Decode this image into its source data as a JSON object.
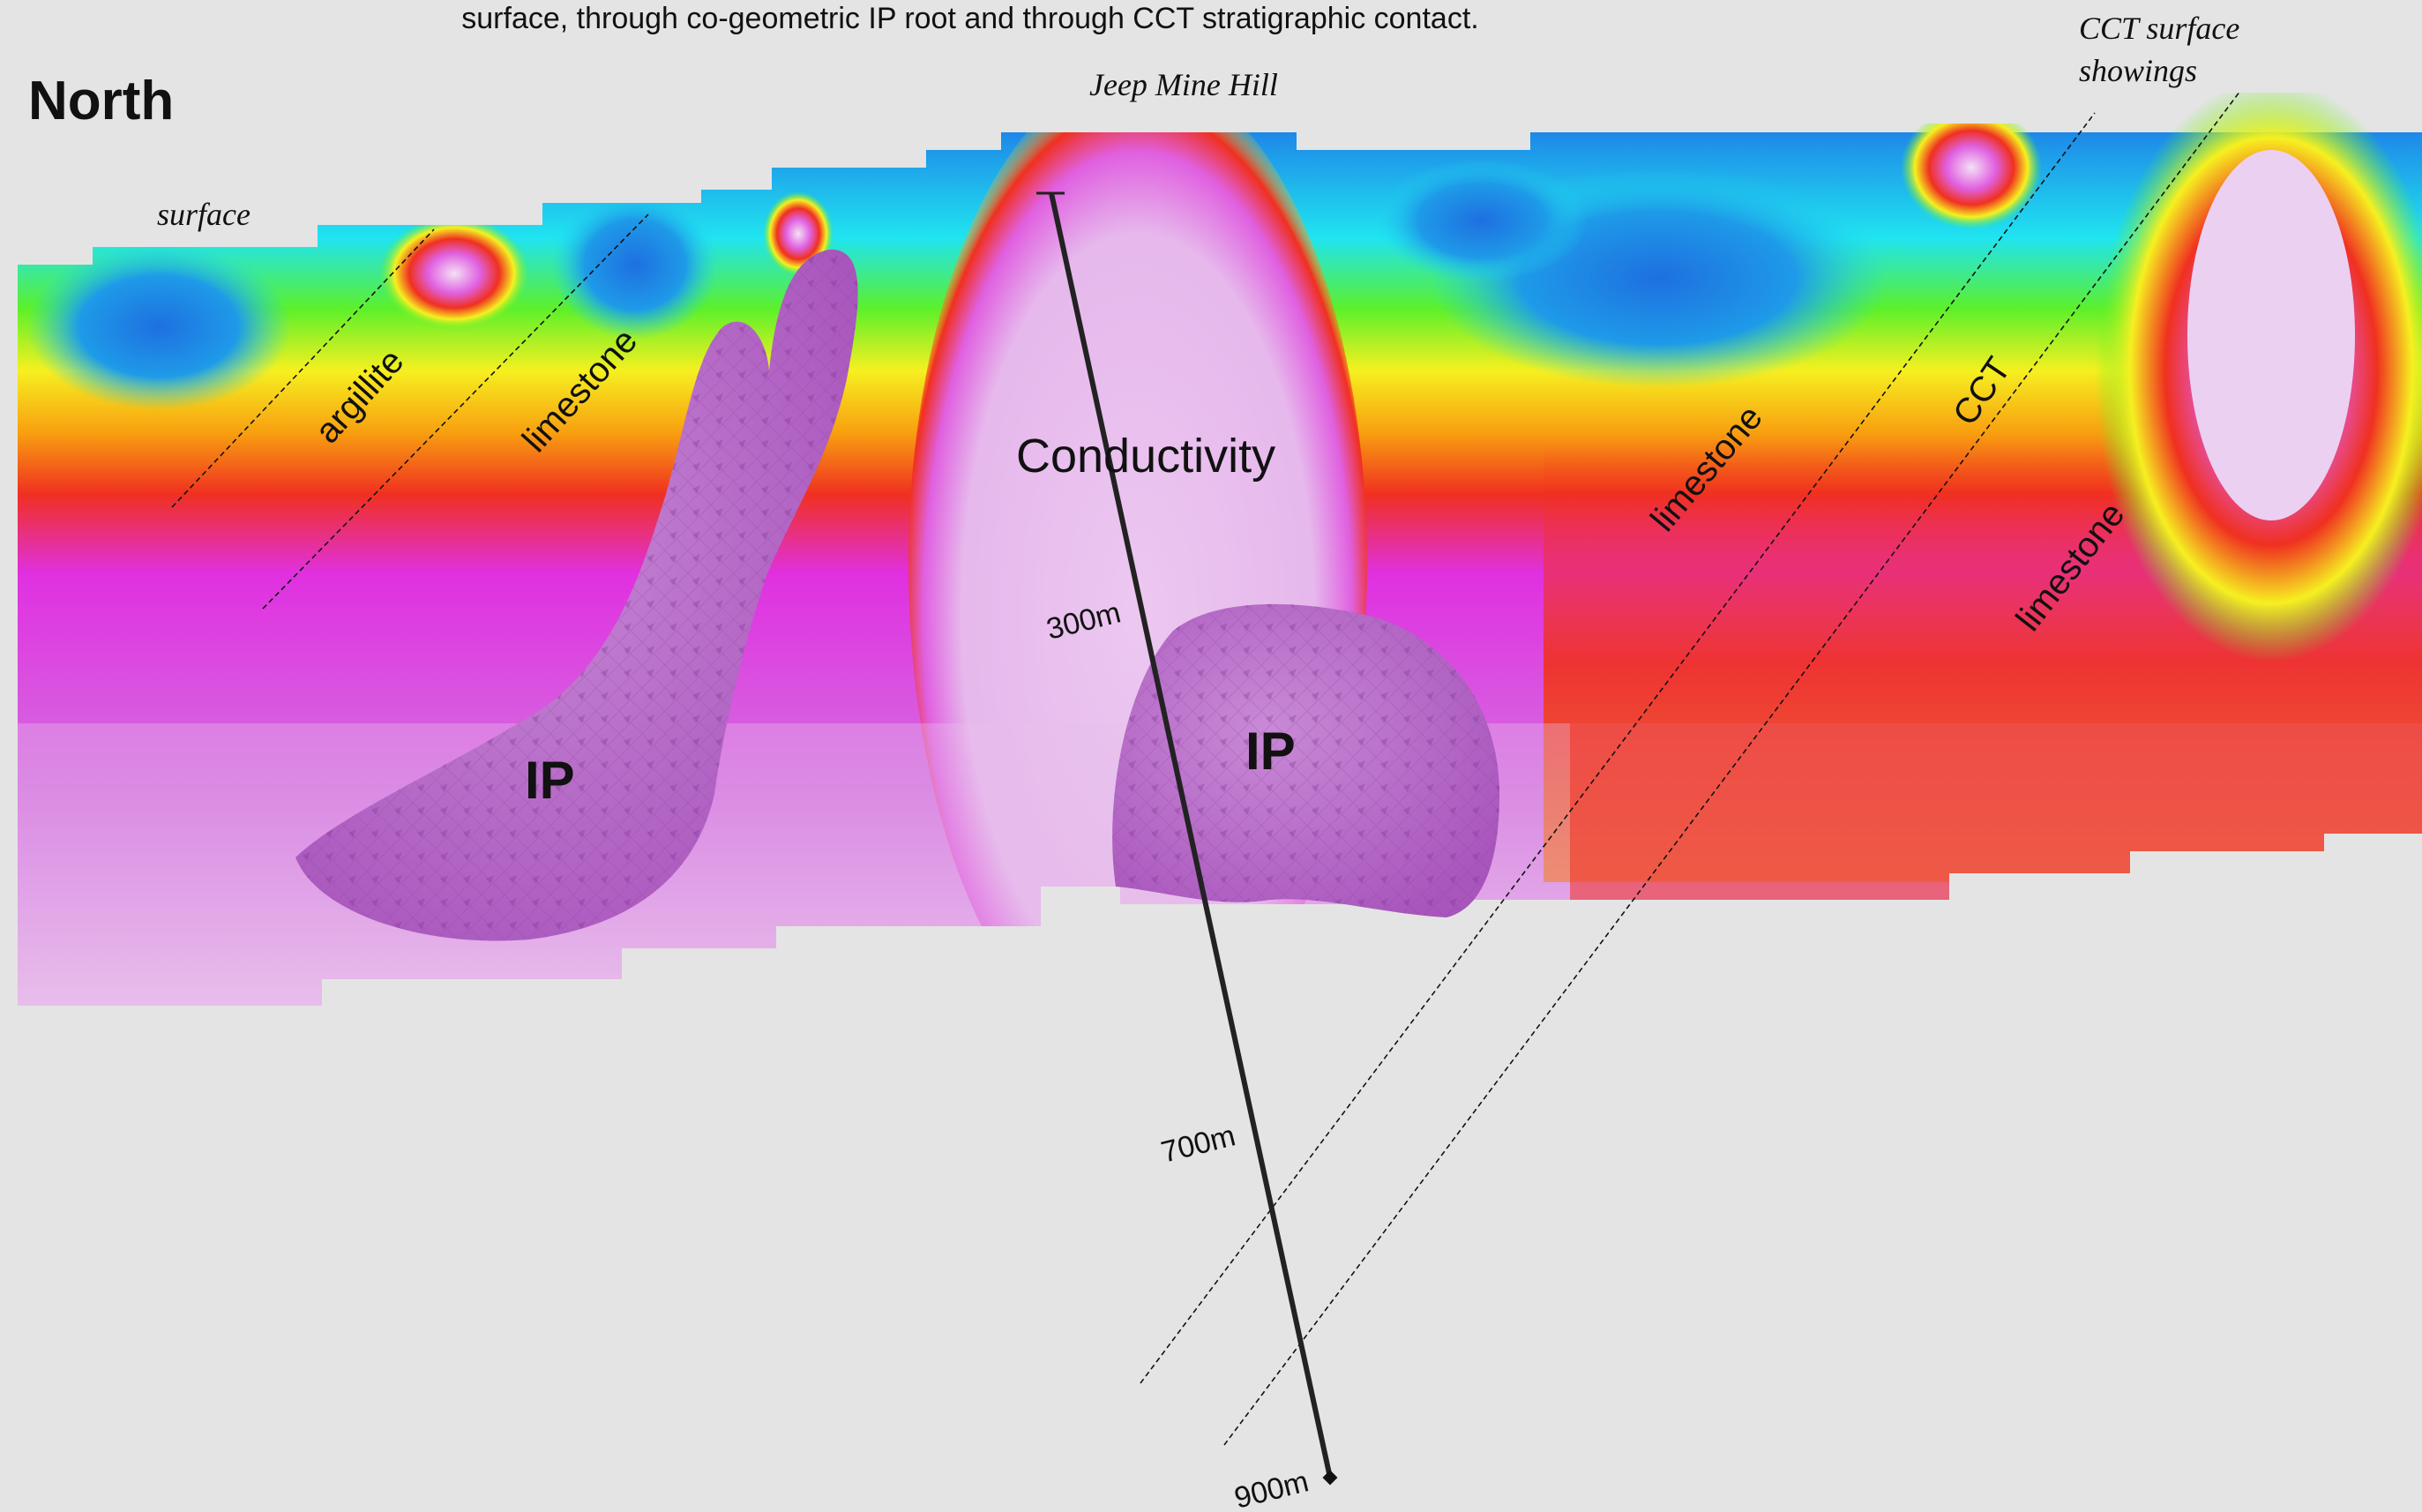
{
  "header": {
    "caption": "surface, through co-geometric IP root and through CCT stratigraphic contact.",
    "direction": "North"
  },
  "labels": {
    "surface": "surface",
    "jeep_mine_hill": "Jeep Mine Hill",
    "cct_surface_line1": "CCT surface",
    "cct_surface_line2": "showings",
    "argillite": "argillite",
    "limestone_left": "limestone",
    "limestone_right_1": "limestone",
    "cct": "CCT",
    "limestone_right_2": "limestone",
    "conductivity": "Conductivity",
    "ip_left": "IP",
    "ip_center": "IP"
  },
  "drillhole": {
    "depth_300": "300m",
    "depth_700": "700m",
    "depth_900": "900m"
  },
  "colors": {
    "background": "#e4e4e4",
    "low_conductivity": "#1e88e8",
    "cyan": "#20e4f0",
    "green": "#5cf02a",
    "yellow": "#f6f020",
    "orange": "#f8a010",
    "red": "#f03020",
    "magenta": "#e030e0",
    "high_conductivity": "#e8c0ec",
    "ip_body": "#b86cc8"
  }
}
